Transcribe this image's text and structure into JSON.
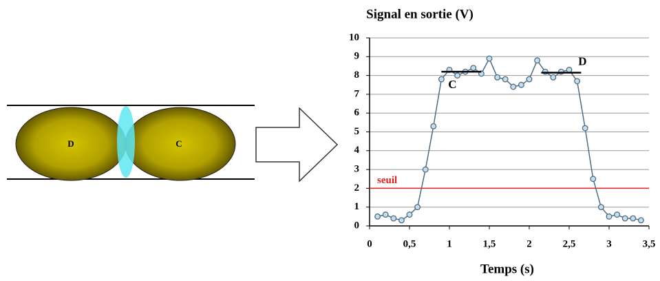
{
  "diagram": {
    "left_label": "D",
    "right_label": "C"
  },
  "chart_data": {
    "type": "line",
    "title": "Signal en sortie (V)",
    "xlabel": "Temps (s)",
    "x": [
      0.1,
      0.2,
      0.3,
      0.4,
      0.5,
      0.6,
      0.7,
      0.8,
      0.9,
      1.0,
      1.1,
      1.2,
      1.3,
      1.4,
      1.5,
      1.6,
      1.7,
      1.8,
      1.9,
      2.0,
      2.1,
      2.2,
      2.3,
      2.4,
      2.5,
      2.6,
      2.7,
      2.8,
      2.9,
      3.0,
      3.1,
      3.2,
      3.3,
      3.4
    ],
    "series": [
      {
        "color": "#4d6b80",
        "values": [
          0.5,
          0.6,
          0.4,
          0.3,
          0.6,
          1.0,
          3.0,
          5.3,
          7.8,
          8.3,
          8.0,
          8.2,
          8.4,
          8.1,
          8.9,
          7.9,
          7.8,
          7.4,
          7.5,
          7.8,
          8.8,
          8.2,
          7.9,
          8.2,
          8.3,
          7.7,
          5.2,
          2.5,
          1.0,
          0.5,
          0.6,
          0.4,
          0.4,
          0.3
        ]
      }
    ],
    "xlim": [
      0,
      3.5
    ],
    "ylim": [
      0,
      10
    ],
    "xticks": [
      0,
      {
        "value": 0.5,
        "label": "0,5"
      },
      1,
      {
        "value": 1.5,
        "label": "1,5"
      },
      2,
      {
        "value": 2.5,
        "label": "2,5"
      },
      3,
      {
        "value": 3.5,
        "label": "3,5"
      }
    ],
    "yticks": [
      0,
      1,
      2,
      3,
      4,
      5,
      6,
      7,
      8,
      9,
      10
    ],
    "grid": true,
    "threshold": {
      "label": "seuil",
      "value": 2,
      "color": "#e0201e"
    },
    "levels": [
      {
        "label": "C",
        "value": 8.2,
        "x": [
          0.9,
          1.4
        ]
      },
      {
        "label": "D",
        "value": 8.15,
        "x": [
          2.15,
          2.65
        ]
      }
    ]
  }
}
